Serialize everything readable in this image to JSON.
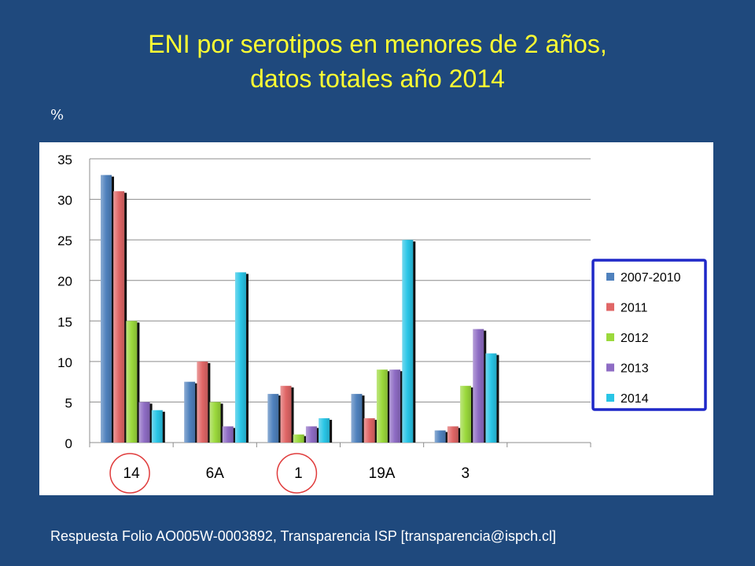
{
  "slide": {
    "title_line1": "ENI por serotipos en menores de 2 años,",
    "title_line2": "datos totales año 2014",
    "unit": "%",
    "footer": "Respuesta Folio AO005W-0003892, Transparencia ISP [transparencia@ispch.cl]"
  },
  "chart_data": {
    "type": "bar",
    "categories": [
      "14",
      "6A",
      "1",
      "19A",
      "3"
    ],
    "series": [
      {
        "name": "2007-2010",
        "color": "#4F81BD",
        "values": [
          33,
          7.5,
          6,
          6,
          1.5
        ]
      },
      {
        "name": "2011",
        "color": "#E06666",
        "values": [
          31,
          10,
          7,
          3,
          2
        ]
      },
      {
        "name": "2012",
        "color": "#9BD93C",
        "values": [
          15,
          5,
          1,
          9,
          7
        ]
      },
      {
        "name": "2013",
        "color": "#8E6CC4",
        "values": [
          5,
          2,
          2,
          9,
          14
        ]
      },
      {
        "name": "2014",
        "color": "#29C5E6",
        "values": [
          4,
          21,
          3,
          25,
          11
        ]
      }
    ],
    "ylim": [
      0,
      35
    ],
    "yticks": [
      0,
      5,
      10,
      15,
      20,
      25,
      30,
      35
    ],
    "grid": true,
    "legend_position": "right",
    "legend_border_color": "#1F28C8",
    "highlighted_categories": [
      "14",
      "1"
    ],
    "highlight_color": "#E03C3C"
  }
}
